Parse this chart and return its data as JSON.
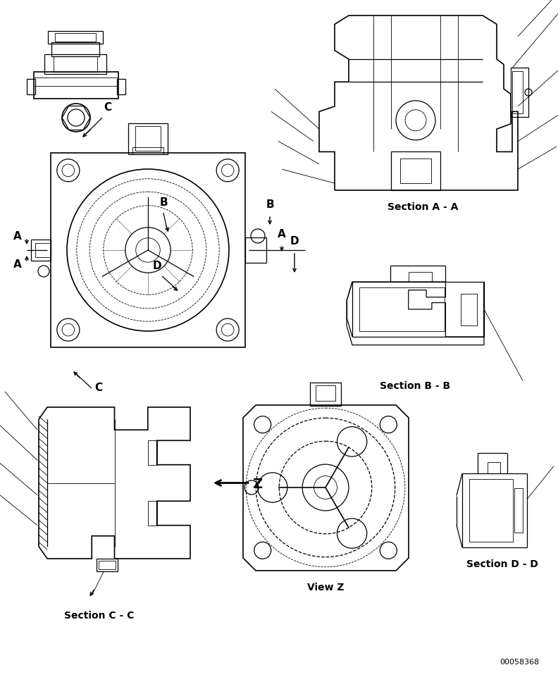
{
  "bg_color": "#ffffff",
  "fig_width": 7.92,
  "fig_height": 9.61,
  "dpi": 100,
  "labels": {
    "section_a_a": "Section A - A",
    "section_b_b": "Section B - B",
    "section_c_c": "Section C - C",
    "section_d_d": "Section D - D",
    "view_z": "View Z",
    "part_number": "00058368",
    "A": "A",
    "B": "B",
    "C": "C",
    "D": "D",
    "Z": "Z"
  },
  "lw_thin": 0.6,
  "lw_med": 0.9,
  "lw_thick": 1.2,
  "font_bold": "bold",
  "font_normal": "normal",
  "fs_section": 10,
  "fs_label": 11,
  "fs_part": 8
}
